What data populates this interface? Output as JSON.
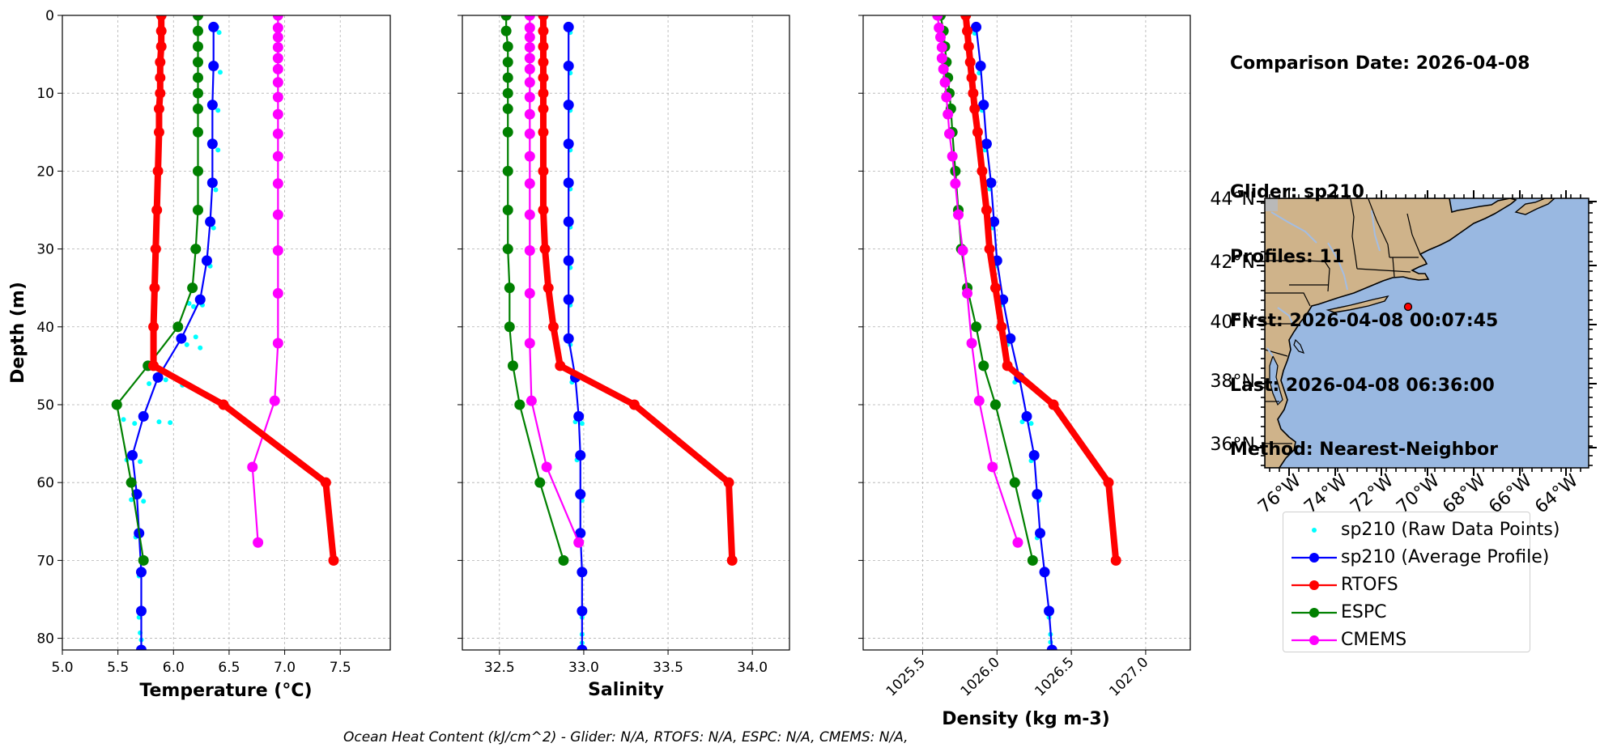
{
  "info": {
    "comparison_date": "Comparison Date: 2026-04-08",
    "glider": "Glider: sp210",
    "profiles": "Profiles: 11",
    "first": "First: 2026-04-08 00:07:45",
    "last": "Last: 2026-04-08 06:36:00",
    "method": "Method: Nearest-Neighbor"
  },
  "footer": "Ocean Heat Content (kJ/cm^2) - Glider: N/A,  RTOFS: N/A,  ESPC: N/A,  CMEMS: N/A,",
  "colors": {
    "raw": "#00ffff",
    "glider": "#0000ff",
    "rtofs": "#ff0000",
    "espc": "#008000",
    "cmems": "#ff00ff",
    "land": "#cfb38a",
    "ocean": "#99b8e1",
    "rivers": "#a3bde3"
  },
  "legend": [
    {
      "key": "raw",
      "label": "sp210 (Raw Data Points)"
    },
    {
      "key": "glider",
      "label": "sp210 (Average Profile)"
    },
    {
      "key": "rtofs",
      "label": "RTOFS"
    },
    {
      "key": "espc",
      "label": "ESPC"
    },
    {
      "key": "cmems",
      "label": "CMEMS"
    }
  ],
  "map": {
    "lat_ticks": [
      "36°N",
      "38°N",
      "40°N",
      "42°N",
      "44°N"
    ],
    "lon_ticks": [
      "76°W",
      "74°W",
      "72°W",
      "70°W",
      "68°W",
      "66°W",
      "64°W"
    ],
    "xlim": [
      -77.0,
      -63.0
    ],
    "ylim": [
      35.0,
      44.0
    ],
    "glider_location": {
      "lon": -70.3,
      "lat": 40.5
    }
  },
  "chart_data": [
    {
      "type": "line",
      "xlabel": "Temperature (°C)",
      "ylabel": "Depth (m)",
      "xlim": [
        5.0,
        7.95
      ],
      "ylim": [
        81.5,
        0
      ],
      "xticks": [
        5.0,
        5.5,
        6.0,
        6.5,
        7.0,
        7.5
      ],
      "xtick_labels": [
        "5.0",
        "5.5",
        "6.0",
        "6.5",
        "7.0",
        "7.5"
      ],
      "yticks": [
        0,
        10,
        20,
        30,
        40,
        50,
        60,
        70,
        80
      ],
      "grid": true,
      "raw_points": [
        [
          6.39,
          1.5
        ],
        [
          6.41,
          2.2
        ],
        [
          6.36,
          6.5
        ],
        [
          6.42,
          7.3
        ],
        [
          6.35,
          11.5
        ],
        [
          6.4,
          12.2
        ],
        [
          6.35,
          16.5
        ],
        [
          6.4,
          17.3
        ],
        [
          6.35,
          21.5
        ],
        [
          6.38,
          22.4
        ],
        [
          6.33,
          26.5
        ],
        [
          6.36,
          27.3
        ],
        [
          6.3,
          31.5
        ],
        [
          6.33,
          32.2
        ],
        [
          6.24,
          36.5
        ],
        [
          6.14,
          37.0
        ],
        [
          6.18,
          37.4
        ],
        [
          6.26,
          37.2
        ],
        [
          6.07,
          41.5
        ],
        [
          6.2,
          41.3
        ],
        [
          6.12,
          42.3
        ],
        [
          6.24,
          42.7
        ],
        [
          5.86,
          46.5
        ],
        [
          5.78,
          47.3
        ],
        [
          5.93,
          46.8
        ],
        [
          6.08,
          47.5
        ],
        [
          5.73,
          51.5
        ],
        [
          5.55,
          51.9
        ],
        [
          5.65,
          52.4
        ],
        [
          5.87,
          52.2
        ],
        [
          5.97,
          52.3
        ],
        [
          5.63,
          56.5
        ],
        [
          5.58,
          57.1
        ],
        [
          5.7,
          57.3
        ],
        [
          5.67,
          61.5
        ],
        [
          5.62,
          62.2
        ],
        [
          5.73,
          62.4
        ],
        [
          5.69,
          66.5
        ],
        [
          5.66,
          67.0
        ],
        [
          5.71,
          71.5
        ],
        [
          5.69,
          72.0
        ],
        [
          5.71,
          76.5
        ],
        [
          5.69,
          77.3
        ],
        [
          5.7,
          79.3
        ],
        [
          5.71,
          80.2
        ],
        [
          5.71,
          81.3
        ]
      ],
      "series": [
        {
          "name": "sp210 (Average Profile)",
          "key": "glider",
          "lw": 2.2,
          "ms": 6.5,
          "depth": [
            1.5,
            6.5,
            11.5,
            16.5,
            21.5,
            26.5,
            31.5,
            36.5,
            41.5,
            46.5,
            51.5,
            56.5,
            61.5,
            66.5,
            71.5,
            76.5,
            81.5
          ],
          "values": [
            6.36,
            6.36,
            6.35,
            6.35,
            6.35,
            6.33,
            6.3,
            6.24,
            6.07,
            5.86,
            5.73,
            5.63,
            5.67,
            5.69,
            5.71,
            5.71,
            5.71
          ]
        },
        {
          "name": "RTOFS",
          "key": "rtofs",
          "lw": 8,
          "ms": 6.5,
          "depth": [
            0,
            2,
            4,
            6,
            8,
            10,
            12,
            15,
            20,
            25,
            30,
            35,
            40,
            45,
            50,
            60,
            70
          ],
          "values": [
            5.89,
            5.89,
            5.89,
            5.88,
            5.88,
            5.88,
            5.87,
            5.87,
            5.86,
            5.85,
            5.84,
            5.83,
            5.82,
            5.82,
            6.45,
            7.37,
            7.44
          ]
        },
        {
          "name": "ESPC",
          "key": "espc",
          "lw": 2.2,
          "ms": 6.5,
          "depth": [
            0,
            2,
            4,
            6,
            8,
            10,
            12,
            15,
            20,
            25,
            30,
            35,
            40,
            45,
            50,
            60,
            70
          ],
          "values": [
            6.22,
            6.22,
            6.22,
            6.22,
            6.22,
            6.22,
            6.22,
            6.22,
            6.22,
            6.22,
            6.2,
            6.17,
            6.04,
            5.77,
            5.49,
            5.62,
            5.73
          ]
        },
        {
          "name": "CMEMS",
          "key": "cmems",
          "lw": 2.2,
          "ms": 6.5,
          "depth": [
            0,
            1.6,
            2.8,
            4.1,
            5.5,
            6.9,
            8.6,
            10.5,
            12.7,
            15.2,
            18.1,
            21.6,
            25.6,
            30.2,
            35.7,
            42.1,
            49.5,
            58.0,
            67.7
          ],
          "values": [
            6.94,
            6.94,
            6.94,
            6.94,
            6.94,
            6.94,
            6.94,
            6.94,
            6.94,
            6.94,
            6.94,
            6.94,
            6.94,
            6.94,
            6.94,
            6.94,
            6.91,
            6.71,
            6.76
          ]
        }
      ]
    },
    {
      "type": "line",
      "xlabel": "Salinity",
      "ylabel": "",
      "xlim": [
        32.28,
        34.22
      ],
      "ylim": [
        81.5,
        0
      ],
      "xticks": [
        32.5,
        33.0,
        33.5,
        34.0
      ],
      "xtick_labels": [
        "32.5",
        "33.0",
        "33.5",
        "34.0"
      ],
      "yticks": [
        0,
        10,
        20,
        30,
        40,
        50,
        60,
        70,
        80
      ],
      "grid": true,
      "raw_points": [
        [
          32.91,
          1.5
        ],
        [
          32.92,
          2.2
        ],
        [
          32.91,
          6.5
        ],
        [
          32.92,
          7.4
        ],
        [
          32.91,
          11.5
        ],
        [
          32.92,
          12.2
        ],
        [
          32.91,
          16.5
        ],
        [
          32.92,
          17.3
        ],
        [
          32.91,
          21.5
        ],
        [
          32.92,
          22.3
        ],
        [
          32.91,
          26.5
        ],
        [
          32.92,
          27.2
        ],
        [
          32.91,
          31.5
        ],
        [
          32.92,
          32.4
        ],
        [
          32.91,
          36.5
        ],
        [
          32.92,
          37.2
        ],
        [
          32.91,
          41.5
        ],
        [
          32.92,
          42.3
        ],
        [
          32.95,
          46.5
        ],
        [
          32.93,
          47.1
        ],
        [
          32.97,
          51.5
        ],
        [
          32.95,
          52.2
        ],
        [
          32.99,
          52.4
        ],
        [
          32.98,
          56.5
        ],
        [
          32.96,
          57.1
        ],
        [
          32.98,
          61.5
        ],
        [
          32.99,
          62.3
        ],
        [
          32.98,
          66.5
        ],
        [
          32.97,
          67.2
        ],
        [
          32.99,
          71.5
        ],
        [
          32.99,
          76.5
        ],
        [
          32.99,
          77.3
        ],
        [
          32.99,
          79.5
        ],
        [
          32.99,
          80.6
        ],
        [
          32.99,
          81.3
        ]
      ],
      "series": [
        {
          "name": "sp210 (Average Profile)",
          "key": "glider",
          "lw": 2.2,
          "ms": 6.5,
          "depth": [
            1.5,
            6.5,
            11.5,
            16.5,
            21.5,
            26.5,
            31.5,
            36.5,
            41.5,
            46.5,
            51.5,
            56.5,
            61.5,
            66.5,
            71.5,
            76.5,
            81.5
          ],
          "values": [
            32.91,
            32.91,
            32.91,
            32.91,
            32.91,
            32.91,
            32.91,
            32.91,
            32.91,
            32.95,
            32.97,
            32.98,
            32.98,
            32.98,
            32.99,
            32.99,
            32.99
          ]
        },
        {
          "name": "RTOFS",
          "key": "rtofs",
          "lw": 8,
          "ms": 6.5,
          "depth": [
            0,
            2,
            4,
            6,
            8,
            10,
            12,
            15,
            20,
            25,
            30,
            35,
            40,
            45,
            50,
            60,
            70
          ],
          "values": [
            32.76,
            32.76,
            32.76,
            32.76,
            32.76,
            32.76,
            32.76,
            32.76,
            32.76,
            32.76,
            32.77,
            32.79,
            32.82,
            32.86,
            33.3,
            33.86,
            33.88
          ]
        },
        {
          "name": "ESPC",
          "key": "espc",
          "lw": 2.2,
          "ms": 6.5,
          "depth": [
            0,
            2,
            4,
            6,
            8,
            10,
            12,
            15,
            20,
            25,
            30,
            35,
            40,
            45,
            50,
            60,
            70
          ],
          "values": [
            32.54,
            32.54,
            32.55,
            32.55,
            32.55,
            32.55,
            32.55,
            32.55,
            32.55,
            32.55,
            32.55,
            32.56,
            32.56,
            32.58,
            32.62,
            32.74,
            32.88
          ]
        },
        {
          "name": "CMEMS",
          "key": "cmems",
          "lw": 2.2,
          "ms": 6.5,
          "depth": [
            0,
            1.6,
            2.8,
            4.1,
            5.5,
            6.9,
            8.6,
            10.5,
            12.7,
            15.2,
            18.1,
            21.6,
            25.6,
            30.2,
            35.7,
            42.1,
            49.5,
            58.0,
            67.7
          ],
          "values": [
            32.68,
            32.68,
            32.68,
            32.68,
            32.68,
            32.68,
            32.68,
            32.68,
            32.68,
            32.68,
            32.68,
            32.68,
            32.68,
            32.68,
            32.68,
            32.68,
            32.69,
            32.78,
            32.97
          ]
        }
      ]
    },
    {
      "type": "line",
      "xlabel": "Density (kg m-3)",
      "ylabel": "",
      "xlim": [
        1025.1,
        1027.3
      ],
      "ylim": [
        81.5,
        0
      ],
      "xticks": [
        1025.5,
        1026.0,
        1026.5,
        1027.0
      ],
      "xtick_labels": [
        "1025.5",
        "1026.0",
        "1026.5",
        "1027.0"
      ],
      "yticks": [
        0,
        10,
        20,
        30,
        40,
        50,
        60,
        70,
        80
      ],
      "grid": true,
      "raw_points": [
        [
          1025.86,
          1.5
        ],
        [
          1025.85,
          2.3
        ],
        [
          1025.89,
          6.5
        ],
        [
          1025.88,
          7.4
        ],
        [
          1025.91,
          11.5
        ],
        [
          1025.9,
          12.2
        ],
        [
          1025.93,
          16.5
        ],
        [
          1025.92,
          17.3
        ],
        [
          1025.96,
          21.5
        ],
        [
          1025.95,
          22.3
        ],
        [
          1025.98,
          26.5
        ],
        [
          1025.97,
          27.3
        ],
        [
          1026.0,
          31.5
        ],
        [
          1025.99,
          32.2
        ],
        [
          1026.04,
          36.5
        ],
        [
          1026.03,
          37.2
        ],
        [
          1026.09,
          41.5
        ],
        [
          1026.07,
          42.3
        ],
        [
          1026.15,
          46.5
        ],
        [
          1026.12,
          47.1
        ],
        [
          1026.2,
          51.5
        ],
        [
          1026.17,
          52.2
        ],
        [
          1026.23,
          52.4
        ],
        [
          1026.25,
          56.5
        ],
        [
          1026.23,
          57.2
        ],
        [
          1026.27,
          61.5
        ],
        [
          1026.28,
          62.3
        ],
        [
          1026.29,
          66.5
        ],
        [
          1026.27,
          67.1
        ],
        [
          1026.32,
          71.5
        ],
        [
          1026.35,
          76.5
        ],
        [
          1026.35,
          77.3
        ],
        [
          1026.36,
          79.5
        ],
        [
          1026.36,
          80.5
        ],
        [
          1026.37,
          81.3
        ]
      ],
      "series": [
        {
          "name": "sp210 (Average Profile)",
          "key": "glider",
          "lw": 2.2,
          "ms": 6.5,
          "depth": [
            1.5,
            6.5,
            11.5,
            16.5,
            21.5,
            26.5,
            31.5,
            36.5,
            41.5,
            46.5,
            51.5,
            56.5,
            61.5,
            66.5,
            71.5,
            76.5,
            81.5
          ],
          "values": [
            1025.86,
            1025.89,
            1025.91,
            1025.93,
            1025.96,
            1025.98,
            1026.0,
            1026.04,
            1026.09,
            1026.15,
            1026.2,
            1026.25,
            1026.27,
            1026.29,
            1026.32,
            1026.35,
            1026.37
          ]
        },
        {
          "name": "RTOFS",
          "key": "rtofs",
          "lw": 8,
          "ms": 6.5,
          "depth": [
            0,
            2,
            4,
            6,
            8,
            10,
            12,
            15,
            20,
            25,
            30,
            35,
            40,
            45,
            50,
            60,
            70
          ],
          "values": [
            1025.79,
            1025.8,
            1025.81,
            1025.82,
            1025.83,
            1025.84,
            1025.85,
            1025.87,
            1025.9,
            1025.93,
            1025.95,
            1025.99,
            1026.03,
            1026.07,
            1026.38,
            1026.75,
            1026.8
          ]
        },
        {
          "name": "ESPC",
          "key": "espc",
          "lw": 2.2,
          "ms": 6.5,
          "depth": [
            0,
            2,
            4,
            6,
            8,
            10,
            12,
            15,
            20,
            25,
            30,
            35,
            40,
            45,
            50,
            60,
            70
          ],
          "values": [
            1025.62,
            1025.64,
            1025.65,
            1025.66,
            1025.67,
            1025.68,
            1025.69,
            1025.7,
            1025.72,
            1025.74,
            1025.76,
            1025.8,
            1025.86,
            1025.91,
            1025.99,
            1026.12,
            1026.24
          ]
        },
        {
          "name": "CMEMS",
          "key": "cmems",
          "lw": 2.2,
          "ms": 6.5,
          "depth": [
            0,
            1.6,
            2.8,
            4.1,
            5.5,
            6.9,
            8.6,
            10.5,
            12.7,
            15.2,
            18.1,
            21.6,
            25.6,
            30.2,
            35.7,
            42.1,
            49.5,
            58.0,
            67.7
          ],
          "values": [
            1025.6,
            1025.61,
            1025.62,
            1025.63,
            1025.63,
            1025.64,
            1025.65,
            1025.66,
            1025.67,
            1025.68,
            1025.7,
            1025.72,
            1025.74,
            1025.77,
            1025.8,
            1025.83,
            1025.88,
            1025.97,
            1026.14
          ]
        }
      ]
    }
  ]
}
